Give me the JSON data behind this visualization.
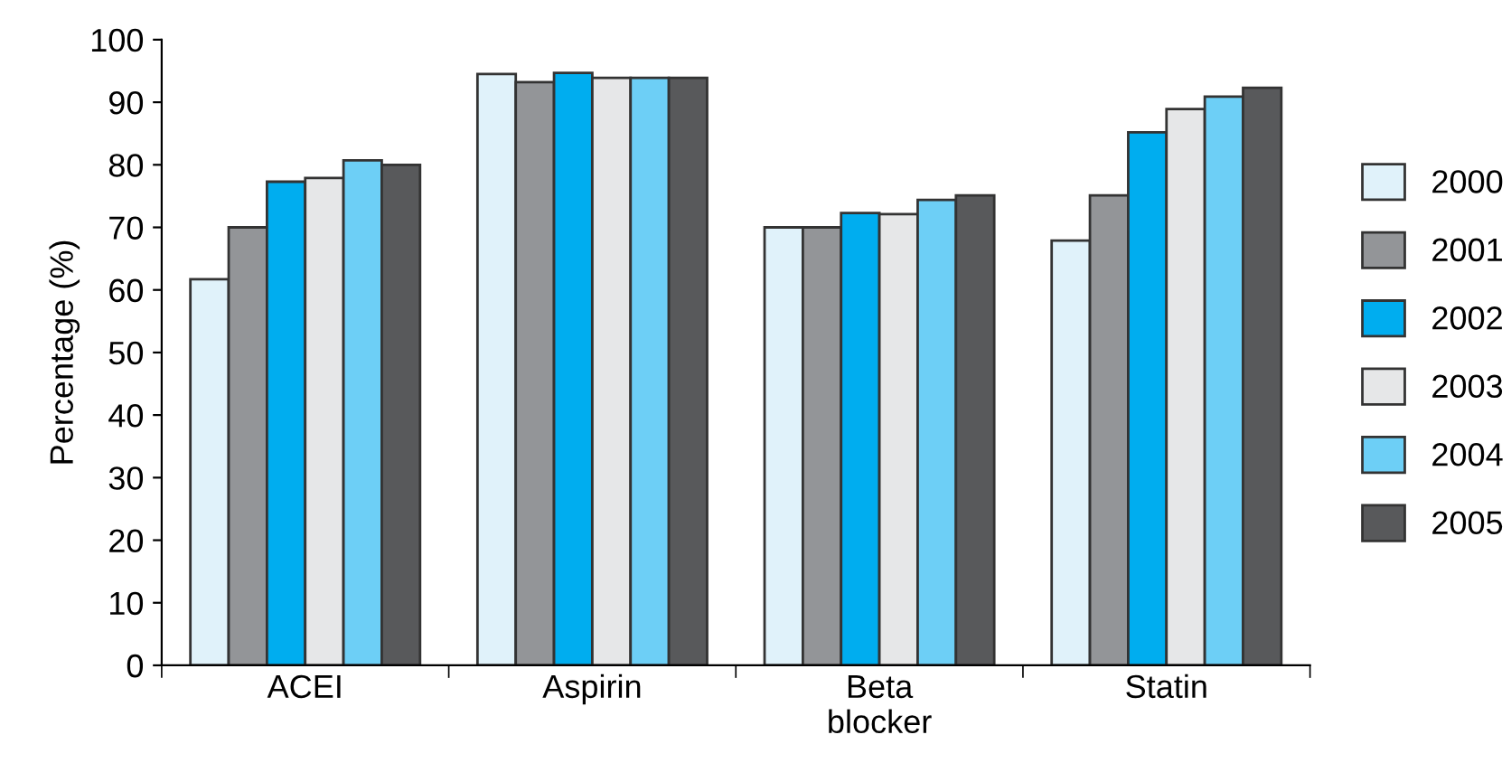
{
  "chart_data": {
    "type": "bar",
    "ylabel": "Percentage (%)",
    "categories": [
      "ACEI",
      "Aspirin",
      "Beta\nblocker",
      "Statin"
    ],
    "series": [
      {
        "name": "2000",
        "color": "#e0f2fa",
        "values": [
          61.7,
          94.5,
          70,
          67.9
        ]
      },
      {
        "name": "2001",
        "color": "#939598",
        "values": [
          70,
          93.2,
          70,
          75.1
        ]
      },
      {
        "name": "2002",
        "color": "#00adef",
        "values": [
          77.3,
          94.7,
          72.3,
          85.2
        ]
      },
      {
        "name": "2003",
        "color": "#e6e7e8",
        "values": [
          77.9,
          93.9,
          72.1,
          88.9
        ]
      },
      {
        "name": "2004",
        "color": "#6dcff6",
        "values": [
          80.7,
          93.9,
          74.4,
          90.9
        ]
      },
      {
        "name": "2005",
        "color": "#58595b",
        "values": [
          80,
          93.9,
          75.1,
          92.3
        ]
      }
    ],
    "ylim": [
      0,
      100
    ],
    "yticks": [
      0,
      10,
      20,
      30,
      40,
      50,
      60,
      70,
      80,
      90,
      100
    ],
    "grid": false,
    "legend": "right"
  }
}
